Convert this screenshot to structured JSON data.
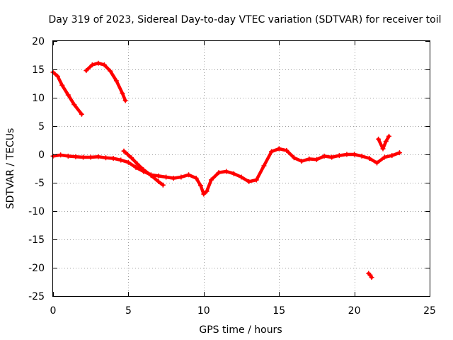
{
  "chart_data": {
    "type": "scatter",
    "title": "Day 319 of 2023, Sidereal Day-to-day VTEC variation (SDTVAR) for receiver toil",
    "xlabel": "GPS time / hours",
    "ylabel": "SDTVAR / TECUs",
    "xlim": [
      0,
      25
    ],
    "ylim": [
      -25,
      20
    ],
    "xticks": [
      0,
      5,
      10,
      15,
      20,
      25
    ],
    "yticks": [
      20,
      15,
      10,
      5,
      0,
      -5,
      -10,
      -15,
      -20,
      -25
    ],
    "grid": true,
    "marker": "plus",
    "color": "#ff0000",
    "series": [
      {
        "name": "arc-1",
        "x": [
          0.0,
          0.3,
          0.6,
          1.0,
          1.4,
          1.9
        ],
        "y": [
          14.5,
          13.8,
          12.2,
          10.5,
          8.8,
          7.1
        ]
      },
      {
        "name": "arc-2",
        "x": [
          2.2,
          2.6,
          3.0,
          3.4,
          3.8,
          4.2,
          4.6,
          4.8
        ],
        "y": [
          14.8,
          15.8,
          16.1,
          15.8,
          14.7,
          13.0,
          10.8,
          9.5
        ]
      },
      {
        "name": "arc-3",
        "x": [
          0.0,
          0.5,
          1.0,
          1.5,
          2.0,
          2.5,
          3.0,
          3.5,
          4.0,
          4.5,
          5.0,
          5.5,
          6.0,
          6.5,
          7.0,
          7.5,
          8.0,
          8.5,
          9.0,
          9.5,
          9.8,
          10.0,
          10.2,
          10.5,
          11.0,
          11.5,
          12.0,
          12.5,
          13.0,
          13.5,
          14.0,
          14.5,
          15.0,
          15.5,
          16.0,
          16.5,
          17.0,
          17.5,
          18.0,
          18.5,
          19.0,
          19.5,
          20.0,
          20.5,
          21.0,
          21.5,
          22.0,
          22.5,
          23.0
        ],
        "y": [
          -0.3,
          -0.1,
          -0.3,
          -0.4,
          -0.5,
          -0.5,
          -0.4,
          -0.6,
          -0.7,
          -1.0,
          -1.4,
          -2.3,
          -3.0,
          -3.6,
          -3.8,
          -4.0,
          -4.2,
          -4.0,
          -3.6,
          -4.2,
          -5.5,
          -7.0,
          -6.5,
          -4.5,
          -3.2,
          -3.0,
          -3.4,
          -4.0,
          -4.8,
          -4.5,
          -2.0,
          0.5,
          1.0,
          0.7,
          -0.6,
          -1.2,
          -0.8,
          -0.9,
          -0.3,
          -0.5,
          -0.2,
          0.0,
          0.0,
          -0.3,
          -0.7,
          -1.5,
          -0.5,
          -0.2,
          0.3
        ]
      },
      {
        "name": "arc-4",
        "x": [
          4.7,
          4.95,
          5.2,
          5.6,
          6.0,
          6.5,
          7.0,
          7.3
        ],
        "y": [
          0.6,
          0.0,
          -0.6,
          -1.7,
          -2.7,
          -3.7,
          -4.8,
          -5.4
        ]
      },
      {
        "name": "arc-5",
        "x": [
          21.6,
          21.9,
          22.1,
          22.3
        ],
        "y": [
          2.7,
          1.0,
          2.3,
          3.2
        ]
      },
      {
        "name": "arc-6",
        "x": [
          20.95,
          21.05,
          21.15
        ],
        "y": [
          -21.0,
          -21.3,
          -21.7
        ]
      }
    ]
  }
}
